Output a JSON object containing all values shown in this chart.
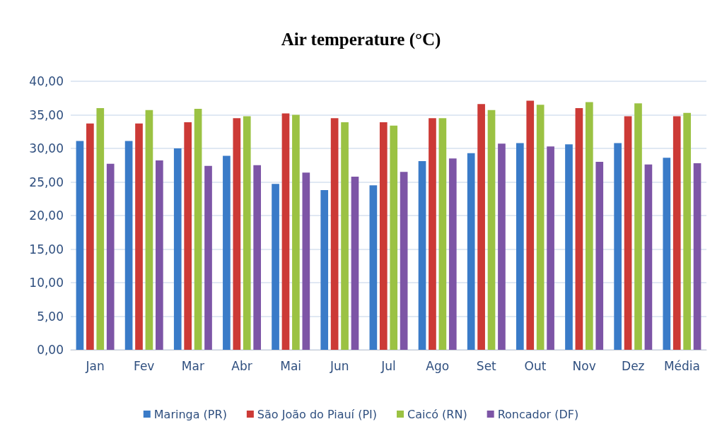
{
  "chart_data": {
    "type": "bar",
    "title": "Air temperature (°C)",
    "categories": [
      "Jan",
      "Fev",
      "Mar",
      "Abr",
      "Mai",
      "Jun",
      "Jul",
      "Ago",
      "Set",
      "Out",
      "Nov",
      "Dez",
      "Média"
    ],
    "series": [
      {
        "name": "Maringa (PR)",
        "color": "#3a7bc8",
        "values": [
          31.1,
          31.1,
          30.0,
          28.9,
          24.7,
          23.8,
          24.5,
          28.1,
          29.3,
          30.8,
          30.6,
          30.8,
          28.6
        ]
      },
      {
        "name": "São João do Piauí (PI)",
        "color": "#cc3a36",
        "values": [
          33.7,
          33.7,
          33.9,
          34.5,
          35.2,
          34.5,
          33.9,
          34.5,
          36.6,
          37.1,
          36.0,
          34.8,
          34.8
        ]
      },
      {
        "name": "Caicó (RN)",
        "color": "#9bc243",
        "values": [
          36.0,
          35.7,
          35.9,
          34.8,
          35.0,
          33.9,
          33.4,
          34.5,
          35.7,
          36.5,
          36.9,
          36.7,
          35.3
        ]
      },
      {
        "name": "Roncador (DF)",
        "color": "#7d55a6",
        "values": [
          27.7,
          28.2,
          27.4,
          27.5,
          26.4,
          25.8,
          26.5,
          28.5,
          30.7,
          30.3,
          28.0,
          27.6,
          27.8
        ]
      }
    ],
    "ylim": [
      0,
      40
    ],
    "yticks": [
      {
        "value": 0,
        "label": "0,00"
      },
      {
        "value": 5,
        "label": "5,00"
      },
      {
        "value": 10,
        "label": "10,00"
      },
      {
        "value": 15,
        "label": "15,00"
      },
      {
        "value": 20,
        "label": "20,00"
      },
      {
        "value": 25,
        "label": "25,00"
      },
      {
        "value": 30,
        "label": "30,00"
      },
      {
        "value": 35,
        "label": "35,00"
      },
      {
        "value": 40,
        "label": "40,00"
      }
    ],
    "grid": "y",
    "legend": "bottom"
  }
}
